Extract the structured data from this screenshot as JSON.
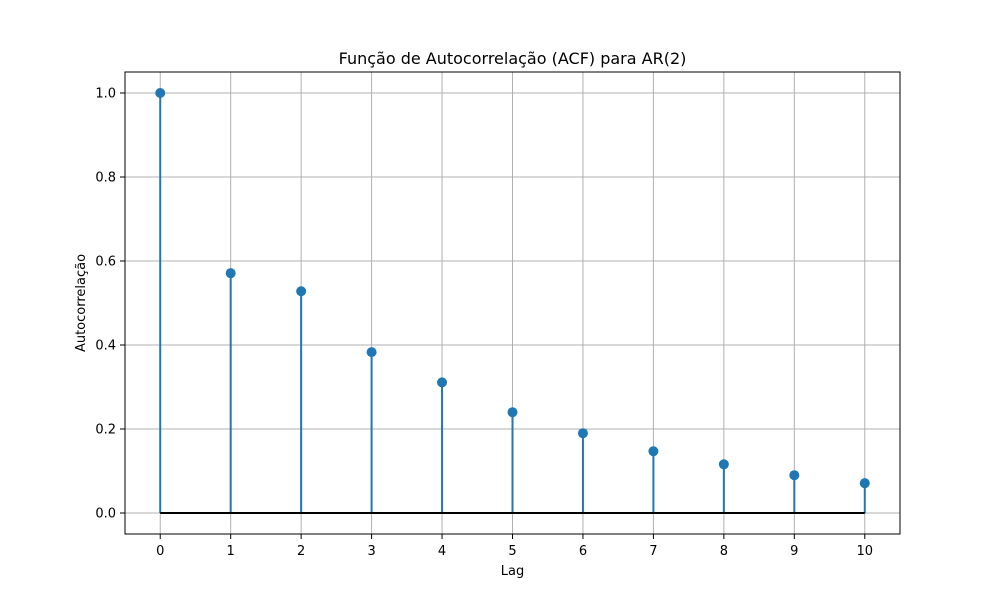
{
  "chart_data": {
    "type": "stem",
    "title": "Função de Autocorrelação (ACF) para AR(2)",
    "xlabel": "Lag",
    "ylabel": "Autocorrelação",
    "x": [
      0,
      1,
      2,
      3,
      4,
      5,
      6,
      7,
      8,
      9,
      10
    ],
    "values": [
      1.0,
      0.571,
      0.528,
      0.383,
      0.311,
      0.24,
      0.19,
      0.147,
      0.116,
      0.09,
      0.071
    ],
    "xlim": [
      -0.5,
      10.5
    ],
    "ylim": [
      -0.05,
      1.05
    ],
    "xticks": [
      "0",
      "1",
      "2",
      "3",
      "4",
      "5",
      "6",
      "7",
      "8",
      "9",
      "10"
    ],
    "yticks": [
      "0.0",
      "0.2",
      "0.4",
      "0.6",
      "0.8",
      "1.0"
    ],
    "grid": true,
    "colors": {
      "stem": "#1f77b4",
      "baseline": "#000000",
      "grid": "#b0b0b0"
    }
  }
}
